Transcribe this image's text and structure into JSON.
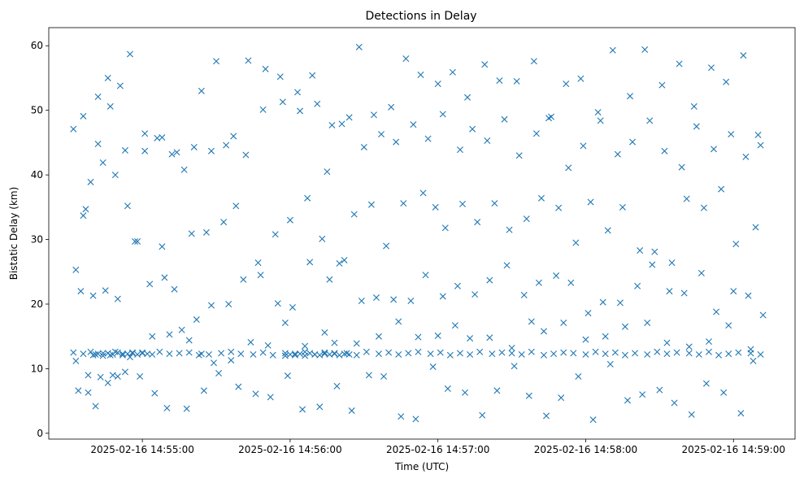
{
  "chart_data": {
    "type": "scatter",
    "title": "Detections in Delay",
    "xlabel": "Time (UTC)",
    "ylabel": "Bistatic Delay (km)",
    "marker": "x",
    "color": "#1f77b4",
    "grid": false,
    "legend": "none",
    "x_is_time": true,
    "xlim": [
      "2025-02-16 14:54:22",
      "2025-02-16 14:59:25"
    ],
    "ylim": [
      -0.9,
      62.8
    ],
    "x_ticks": [
      "2025-02-16 14:55:00",
      "2025-02-16 14:56:00",
      "2025-02-16 14:57:00",
      "2025-02-16 14:58:00",
      "2025-02-16 14:59:00"
    ],
    "y_ticks": [
      0,
      10,
      20,
      30,
      40,
      50,
      60
    ],
    "series": [
      {
        "x": [
          "2025-02-16 14:54:32",
          "2025-02-16 14:54:36",
          "2025-02-16 14:54:39",
          "2025-02-16 14:54:41",
          "2025-02-16 14:54:44",
          "2025-02-16 14:54:47",
          "2025-02-16 14:54:49",
          "2025-02-16 14:54:52",
          "2025-02-16 14:54:56",
          "2025-02-16 14:55:00",
          "2025-02-16 14:55:04",
          "2025-02-16 14:55:07",
          "2025-02-16 14:55:11",
          "2025-02-16 14:55:15",
          "2025-02-16 14:55:19",
          "2025-02-16 14:55:23",
          "2025-02-16 14:55:27",
          "2025-02-16 14:55:32",
          "2025-02-16 14:55:36",
          "2025-02-16 14:55:40",
          "2025-02-16 14:55:45",
          "2025-02-16 14:55:49",
          "2025-02-16 14:55:53",
          "2025-02-16 14:55:58",
          "2025-02-16 14:56:02",
          "2025-02-16 14:56:06",
          "2025-02-16 14:56:10",
          "2025-02-16 14:56:14",
          "2025-02-16 14:56:18",
          "2025-02-16 14:56:23",
          "2025-02-16 14:56:27",
          "2025-02-16 14:56:31",
          "2025-02-16 14:56:36",
          "2025-02-16 14:56:40",
          "2025-02-16 14:56:44",
          "2025-02-16 14:56:48",
          "2025-02-16 14:56:52",
          "2025-02-16 14:56:57",
          "2025-02-16 14:57:01",
          "2025-02-16 14:57:05",
          "2025-02-16 14:57:09",
          "2025-02-16 14:57:13",
          "2025-02-16 14:57:17",
          "2025-02-16 14:57:22",
          "2025-02-16 14:57:26",
          "2025-02-16 14:57:30",
          "2025-02-16 14:57:34",
          "2025-02-16 14:57:38",
          "2025-02-16 14:57:43",
          "2025-02-16 14:57:47",
          "2025-02-16 14:57:51",
          "2025-02-16 14:57:55",
          "2025-02-16 14:58:00",
          "2025-02-16 14:58:04",
          "2025-02-16 14:58:08",
          "2025-02-16 14:58:12",
          "2025-02-16 14:58:16",
          "2025-02-16 14:58:20",
          "2025-02-16 14:58:25",
          "2025-02-16 14:58:29",
          "2025-02-16 14:58:33",
          "2025-02-16 14:58:37",
          "2025-02-16 14:58:42",
          "2025-02-16 14:58:46",
          "2025-02-16 14:58:50",
          "2025-02-16 14:58:54",
          "2025-02-16 14:58:58",
          "2025-02-16 14:59:02",
          "2025-02-16 14:59:07",
          "2025-02-16 14:59:11",
          "2025-02-16 14:54:33",
          "2025-02-16 14:54:37",
          "2025-02-16 14:54:42",
          "2025-02-16 14:54:46",
          "2025-02-16 14:54:51",
          "2025-02-16 14:54:55",
          "2025-02-16 14:55:01",
          "2025-02-16 14:55:06",
          "2025-02-16 14:55:12",
          "2025-02-16 14:55:17",
          "2025-02-16 14:55:24",
          "2025-02-16 14:55:30",
          "2025-02-16 14:55:37",
          "2025-02-16 14:55:43",
          "2025-02-16 14:55:50",
          "2025-02-16 14:55:56",
          "2025-02-16 14:56:03",
          "2025-02-16 14:56:09",
          "2025-02-16 14:56:15",
          "2025-02-16 14:56:21",
          "2025-02-16 14:56:28",
          "2025-02-16 14:56:34",
          "2025-02-16 14:56:41",
          "2025-02-16 14:56:47",
          "2025-02-16 14:56:53",
          "2025-02-16 14:57:00",
          "2025-02-16 14:57:06",
          "2025-02-16 14:57:12",
          "2025-02-16 14:57:19",
          "2025-02-16 14:57:25",
          "2025-02-16 14:57:32",
          "2025-02-16 14:57:39",
          "2025-02-16 14:57:45",
          "2025-02-16 14:57:52",
          "2025-02-16 14:57:58",
          "2025-02-16 14:58:05",
          "2025-02-16 14:58:11",
          "2025-02-16 14:58:18",
          "2025-02-16 14:58:24",
          "2025-02-16 14:58:31",
          "2025-02-16 14:58:38",
          "2025-02-16 14:58:44",
          "2025-02-16 14:58:51",
          "2025-02-16 14:58:57",
          "2025-02-16 14:59:04",
          "2025-02-16 14:59:10",
          "2025-02-16 14:54:35",
          "2025-02-16 14:54:40",
          "2025-02-16 14:54:45",
          "2025-02-16 14:54:50",
          "2025-02-16 14:54:57",
          "2025-02-16 14:55:03",
          "2025-02-16 14:55:09",
          "2025-02-16 14:55:16",
          "2025-02-16 14:55:22",
          "2025-02-16 14:55:28",
          "2025-02-16 14:55:35",
          "2025-02-16 14:55:41",
          "2025-02-16 14:55:48",
          "2025-02-16 14:55:55",
          "2025-02-16 14:56:01",
          "2025-02-16 14:56:08",
          "2025-02-16 14:56:16",
          "2025-02-16 14:56:22",
          "2025-02-16 14:56:29",
          "2025-02-16 14:56:35",
          "2025-02-16 14:56:42",
          "2025-02-16 14:56:49",
          "2025-02-16 14:56:55",
          "2025-02-16 14:57:02",
          "2025-02-16 14:57:08",
          "2025-02-16 14:57:15",
          "2025-02-16 14:57:21",
          "2025-02-16 14:57:28",
          "2025-02-16 14:57:35",
          "2025-02-16 14:57:41",
          "2025-02-16 14:57:48",
          "2025-02-16 14:57:54",
          "2025-02-16 14:58:01",
          "2025-02-16 14:58:07",
          "2025-02-16 14:58:14",
          "2025-02-16 14:58:21",
          "2025-02-16 14:58:27",
          "2025-02-16 14:58:34",
          "2025-02-16 14:58:40",
          "2025-02-16 14:58:47",
          "2025-02-16 14:58:53",
          "2025-02-16 14:59:00",
          "2025-02-16 14:59:06",
          "2025-02-16 14:59:12",
          "2025-02-16 14:54:34",
          "2025-02-16 14:54:38",
          "2025-02-16 14:54:43",
          "2025-02-16 14:54:48",
          "2025-02-16 14:54:53",
          "2025-02-16 14:54:59",
          "2025-02-16 14:55:05",
          "2025-02-16 14:55:10",
          "2025-02-16 14:55:18",
          "2025-02-16 14:55:25",
          "2025-02-16 14:55:31",
          "2025-02-16 14:55:39",
          "2025-02-16 14:55:46",
          "2025-02-16 14:55:52",
          "2025-02-16 14:55:59",
          "2025-02-16 14:56:05",
          "2025-02-16 14:56:12",
          "2025-02-16 14:56:19",
          "2025-02-16 14:56:25",
          "2025-02-16 14:56:32",
          "2025-02-16 14:56:38",
          "2025-02-16 14:56:45",
          "2025-02-16 14:56:51",
          "2025-02-16 14:56:58",
          "2025-02-16 14:57:04",
          "2025-02-16 14:57:11",
          "2025-02-16 14:57:18",
          "2025-02-16 14:57:24",
          "2025-02-16 14:57:31",
          "2025-02-16 14:57:37",
          "2025-02-16 14:57:44",
          "2025-02-16 14:57:50",
          "2025-02-16 14:57:57",
          "2025-02-16 14:58:03",
          "2025-02-16 14:58:10",
          "2025-02-16 14:58:17",
          "2025-02-16 14:58:23",
          "2025-02-16 14:58:30",
          "2025-02-16 14:58:36",
          "2025-02-16 14:58:43",
          "2025-02-16 14:58:49",
          "2025-02-16 14:58:56",
          "2025-02-16 14:59:03",
          "2025-02-16 14:59:08",
          "2025-02-16 14:54:36",
          "2025-02-16 14:54:39",
          "2025-02-16 14:54:44",
          "2025-02-16 14:54:49",
          "2025-02-16 14:54:54",
          "2025-02-16 14:54:58",
          "2025-02-16 14:55:08",
          "2025-02-16 14:55:13",
          "2025-02-16 14:55:20",
          "2025-02-16 14:55:26",
          "2025-02-16 14:55:33",
          "2025-02-16 14:55:38",
          "2025-02-16 14:55:47",
          "2025-02-16 14:55:54",
          "2025-02-16 14:56:00",
          "2025-02-16 14:56:07",
          "2025-02-16 14:56:13",
          "2025-02-16 14:56:20",
          "2025-02-16 14:56:26",
          "2025-02-16 14:56:33",
          "2025-02-16 14:56:39",
          "2025-02-16 14:56:46",
          "2025-02-16 14:56:54",
          "2025-02-16 14:56:59",
          "2025-02-16 14:57:03",
          "2025-02-16 14:57:10",
          "2025-02-16 14:57:16",
          "2025-02-16 14:57:23",
          "2025-02-16 14:57:29",
          "2025-02-16 14:57:36",
          "2025-02-16 14:57:42",
          "2025-02-16 14:57:49",
          "2025-02-16 14:57:56",
          "2025-02-16 14:58:02",
          "2025-02-16 14:58:09",
          "2025-02-16 14:58:15",
          "2025-02-16 14:58:22",
          "2025-02-16 14:58:28",
          "2025-02-16 14:58:35",
          "2025-02-16 14:58:41",
          "2025-02-16 14:58:48",
          "2025-02-16 14:58:55",
          "2025-02-16 14:59:01",
          "2025-02-16 14:59:09",
          "2025-02-16 14:54:32",
          "2025-02-16 14:54:36",
          "2025-02-16 14:54:42",
          "2025-02-16 14:54:47",
          "2025-02-16 14:54:53",
          "2025-02-16 14:55:01",
          "2025-02-16 14:55:08",
          "2025-02-16 14:55:14",
          "2025-02-16 14:55:21",
          "2025-02-16 14:55:28",
          "2025-02-16 14:55:34",
          "2025-02-16 14:55:42",
          "2025-02-16 14:55:49",
          "2025-02-16 14:55:57",
          "2025-02-16 14:56:04",
          "2025-02-16 14:56:11",
          "2025-02-16 14:56:17",
          "2025-02-16 14:56:24",
          "2025-02-16 14:56:30",
          "2025-02-16 14:56:37",
          "2025-02-16 14:56:43",
          "2025-02-16 14:56:50",
          "2025-02-16 14:56:56",
          "2025-02-16 14:57:02",
          "2025-02-16 14:57:09",
          "2025-02-16 14:57:14",
          "2025-02-16 14:57:20",
          "2025-02-16 14:57:27",
          "2025-02-16 14:57:33",
          "2025-02-16 14:57:40",
          "2025-02-16 14:57:46",
          "2025-02-16 14:57:53",
          "2025-02-16 14:57:59",
          "2025-02-16 14:58:06",
          "2025-02-16 14:58:13",
          "2025-02-16 14:58:19",
          "2025-02-16 14:58:26",
          "2025-02-16 14:58:32",
          "2025-02-16 14:58:39",
          "2025-02-16 14:58:45",
          "2025-02-16 14:58:52",
          "2025-02-16 14:58:59",
          "2025-02-16 14:59:05",
          "2025-02-16 14:59:11",
          "2025-02-16 14:54:33",
          "2025-02-16 14:54:38",
          "2025-02-16 14:54:41",
          "2025-02-16 14:54:46",
          "2025-02-16 14:54:50",
          "2025-02-16 14:54:55",
          "2025-02-16 14:55:04",
          "2025-02-16 14:55:11",
          "2025-02-16 14:55:19",
          "2025-02-16 14:55:24",
          "2025-02-16 14:55:29",
          "2025-02-16 14:55:36",
          "2025-02-16 14:55:44",
          "2025-02-16 14:55:51",
          "2025-02-16 14:55:58",
          "2025-02-16 14:56:06",
          "2025-02-16 14:56:14",
          "2025-02-16 14:56:18",
          "2025-02-16 14:56:27",
          "2025-02-16 14:56:36",
          "2025-02-16 14:56:44",
          "2025-02-16 14:56:52",
          "2025-02-16 14:57:00",
          "2025-02-16 14:57:07",
          "2025-02-16 14:57:13",
          "2025-02-16 14:57:21",
          "2025-02-16 14:57:30",
          "2025-02-16 14:57:38",
          "2025-02-16 14:57:43",
          "2025-02-16 14:57:51",
          "2025-02-16 14:58:00",
          "2025-02-16 14:58:08",
          "2025-02-16 14:58:16",
          "2025-02-16 14:58:25",
          "2025-02-16 14:58:33",
          "2025-02-16 14:58:42",
          "2025-02-16 14:58:50",
          "2025-02-16 14:58:58",
          "2025-02-16 14:59:07",
          "2025-02-16 14:54:40",
          "2025-02-16 14:54:42",
          "2025-02-16 14:54:44",
          "2025-02-16 14:54:46",
          "2025-02-16 14:54:48",
          "2025-02-16 14:54:50",
          "2025-02-16 14:54:52",
          "2025-02-16 14:54:54",
          "2025-02-16 14:54:56",
          "2025-02-16 14:54:58",
          "2025-02-16 14:55:00",
          "2025-02-16 14:55:02",
          "2025-02-16 14:55:58",
          "2025-02-16 14:56:00",
          "2025-02-16 14:56:02",
          "2025-02-16 14:56:04",
          "2025-02-16 14:56:06",
          "2025-02-16 14:56:08",
          "2025-02-16 14:56:10",
          "2025-02-16 14:56:12",
          "2025-02-16 14:56:14",
          "2025-02-16 14:56:16",
          "2025-02-16 14:56:18",
          "2025-02-16 14:56:20",
          "2025-02-16 14:56:22",
          "2025-02-16 14:56:24"
        ],
        "y": [
          12.5,
          12.3,
          12.6,
          12.2,
          12.4,
          12.1,
          12.6,
          12.3,
          12.5,
          12.4,
          12.2,
          12.6,
          12.3,
          12.4,
          12.5,
          12.1,
          12.2,
          12.4,
          12.6,
          12.3,
          12.2,
          12.5,
          12.1,
          12.4,
          12.3,
          12.6,
          12.2,
          12.5,
          12.3,
          12.4,
          12.1,
          12.6,
          12.3,
          12.5,
          12.2,
          12.4,
          12.6,
          12.3,
          12.5,
          12.1,
          12.4,
          12.2,
          12.6,
          12.3,
          12.5,
          12.4,
          12.2,
          12.6,
          12.1,
          12.3,
          12.5,
          12.4,
          12.2,
          12.6,
          12.3,
          12.5,
          12.1,
          12.4,
          12.2,
          12.6,
          12.3,
          12.5,
          12.4,
          12.2,
          12.6,
          12.1,
          12.3,
          12.5,
          12.4,
          12.2,
          25.3,
          34.7,
          52.1,
          55.0,
          53.8,
          58.7,
          43.7,
          45.7,
          43.2,
          40.8,
          53.0,
          57.6,
          46.0,
          57.7,
          56.4,
          55.2,
          52.8,
          55.4,
          40.5,
          47.9,
          59.8,
          49.3,
          50.5,
          58.0,
          55.5,
          54.1,
          55.9,
          52.0,
          57.1,
          54.6,
          54.5,
          57.6,
          48.8,
          54.1,
          54.9,
          49.7,
          59.3,
          52.2,
          59.4,
          53.9,
          57.2,
          50.6,
          56.6,
          54.4,
          58.5,
          46.2,
          22.0,
          21.3,
          22.1,
          20.8,
          29.7,
          23.1,
          24.1,
          16.0,
          17.6,
          19.8,
          20.0,
          23.8,
          24.5,
          20.1,
          19.5,
          26.5,
          23.8,
          26.8,
          20.5,
          21.0,
          20.7,
          20.5,
          24.5,
          21.2,
          22.8,
          21.5,
          23.7,
          26.0,
          21.4,
          23.3,
          24.4,
          23.3,
          18.6,
          20.3,
          20.2,
          22.8,
          26.1,
          22.0,
          21.7,
          24.8,
          18.8,
          22.0,
          21.3,
          18.3,
          6.6,
          6.3,
          8.7,
          9.0,
          9.5,
          8.8,
          6.2,
          3.9,
          3.8,
          6.6,
          9.3,
          7.2,
          6.1,
          5.6,
          8.9,
          3.7,
          4.1,
          7.3,
          3.5,
          9.0,
          8.8,
          2.6,
          2.2,
          10.3,
          6.9,
          6.3,
          2.8,
          6.6,
          10.4,
          5.8,
          2.7,
          5.5,
          8.8,
          2.1,
          10.7,
          5.1,
          6.0,
          6.7,
          4.7,
          2.9,
          7.7,
          6.3,
          3.1,
          11.2,
          33.7,
          38.9,
          41.9,
          40.0,
          35.2,
          29.7,
          28.9,
          22.3,
          30.9,
          31.1,
          32.7,
          35.2,
          26.4,
          30.8,
          33.0,
          36.4,
          30.1,
          26.3,
          33.9,
          35.4,
          29.0,
          35.6,
          37.2,
          35.0,
          31.8,
          35.5,
          32.7,
          35.6,
          31.5,
          33.2,
          36.4,
          34.9,
          29.5,
          35.8,
          31.4,
          35.0,
          28.3,
          28.1,
          26.4,
          36.3,
          34.9,
          37.8,
          29.3,
          31.9,
          47.1,
          49.1,
          44.8,
          50.6,
          43.8,
          46.4,
          45.8,
          43.5,
          44.3,
          43.7,
          44.6,
          43.1,
          50.1,
          51.3,
          49.9,
          51.0,
          47.7,
          48.9,
          44.3,
          46.3,
          45.1,
          47.8,
          45.6,
          49.4,
          43.9,
          47.1,
          45.3,
          48.6,
          43.0,
          46.4,
          49.0,
          41.1,
          44.5,
          48.4,
          43.2,
          45.1,
          48.4,
          43.7,
          41.2,
          47.5,
          44.0,
          46.3,
          42.8,
          44.6,
          11.2,
          9.0,
          4.2,
          7.8,
          8.8,
          11.8,
          15.0,
          15.3,
          14.4,
          12.3,
          10.9,
          11.3,
          14.1,
          13.6,
          17.1,
          13.5,
          15.6,
          14.0,
          13.9,
          15.0,
          17.3,
          14.9,
          15.1,
          16.7,
          14.7,
          14.8,
          13.2,
          17.3,
          15.8,
          17.1,
          14.5,
          15.0,
          16.5,
          17.1,
          14.0,
          13.4,
          14.2,
          16.7,
          13.0,
          12.1,
          12.3,
          12.0,
          12.4,
          12.2,
          12.5,
          12.1,
          12.3,
          12.4,
          12.2,
          12.5,
          12.3,
          12.0,
          12.2,
          12.1,
          12.3,
          12.0,
          12.4,
          12.2,
          12.1,
          12.3,
          12.2,
          12.4,
          12.1,
          12.3,
          12.2
        ]
      }
    ]
  }
}
